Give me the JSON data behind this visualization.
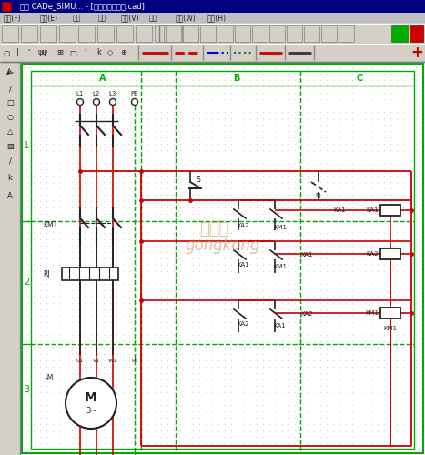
{
  "title_bar": "关于 CADe_SIMU... - [单按钮启停电路.cad]",
  "menu_items": [
    "文件(F)",
    "编辑(E)",
    "绘图",
    "模拟",
    "查看(V)",
    "显示",
    "窗口(W)",
    "帮助(H)"
  ],
  "col_labels": [
    "A",
    "B",
    "C"
  ],
  "row_labels": [
    "1",
    "2",
    "3"
  ],
  "bg_color": "#c0c0c0",
  "toolbar_bg": "#d4d0c8",
  "canvas_bg": "#ffffff",
  "grid_dot_color": "#d0d0d0",
  "green": "#00aa00",
  "red": "#cc0000",
  "dark": "#222222",
  "title_bg": "#000080",
  "title_fg": "#ffffff",
  "menu_bg": "#c0c0c0",
  "watermark1": "发布于",
  "watermark2": "gongkong",
  "watermark_color": "#d4a06a",
  "figw": 4.67,
  "figh": 5.0,
  "dpi": 100
}
